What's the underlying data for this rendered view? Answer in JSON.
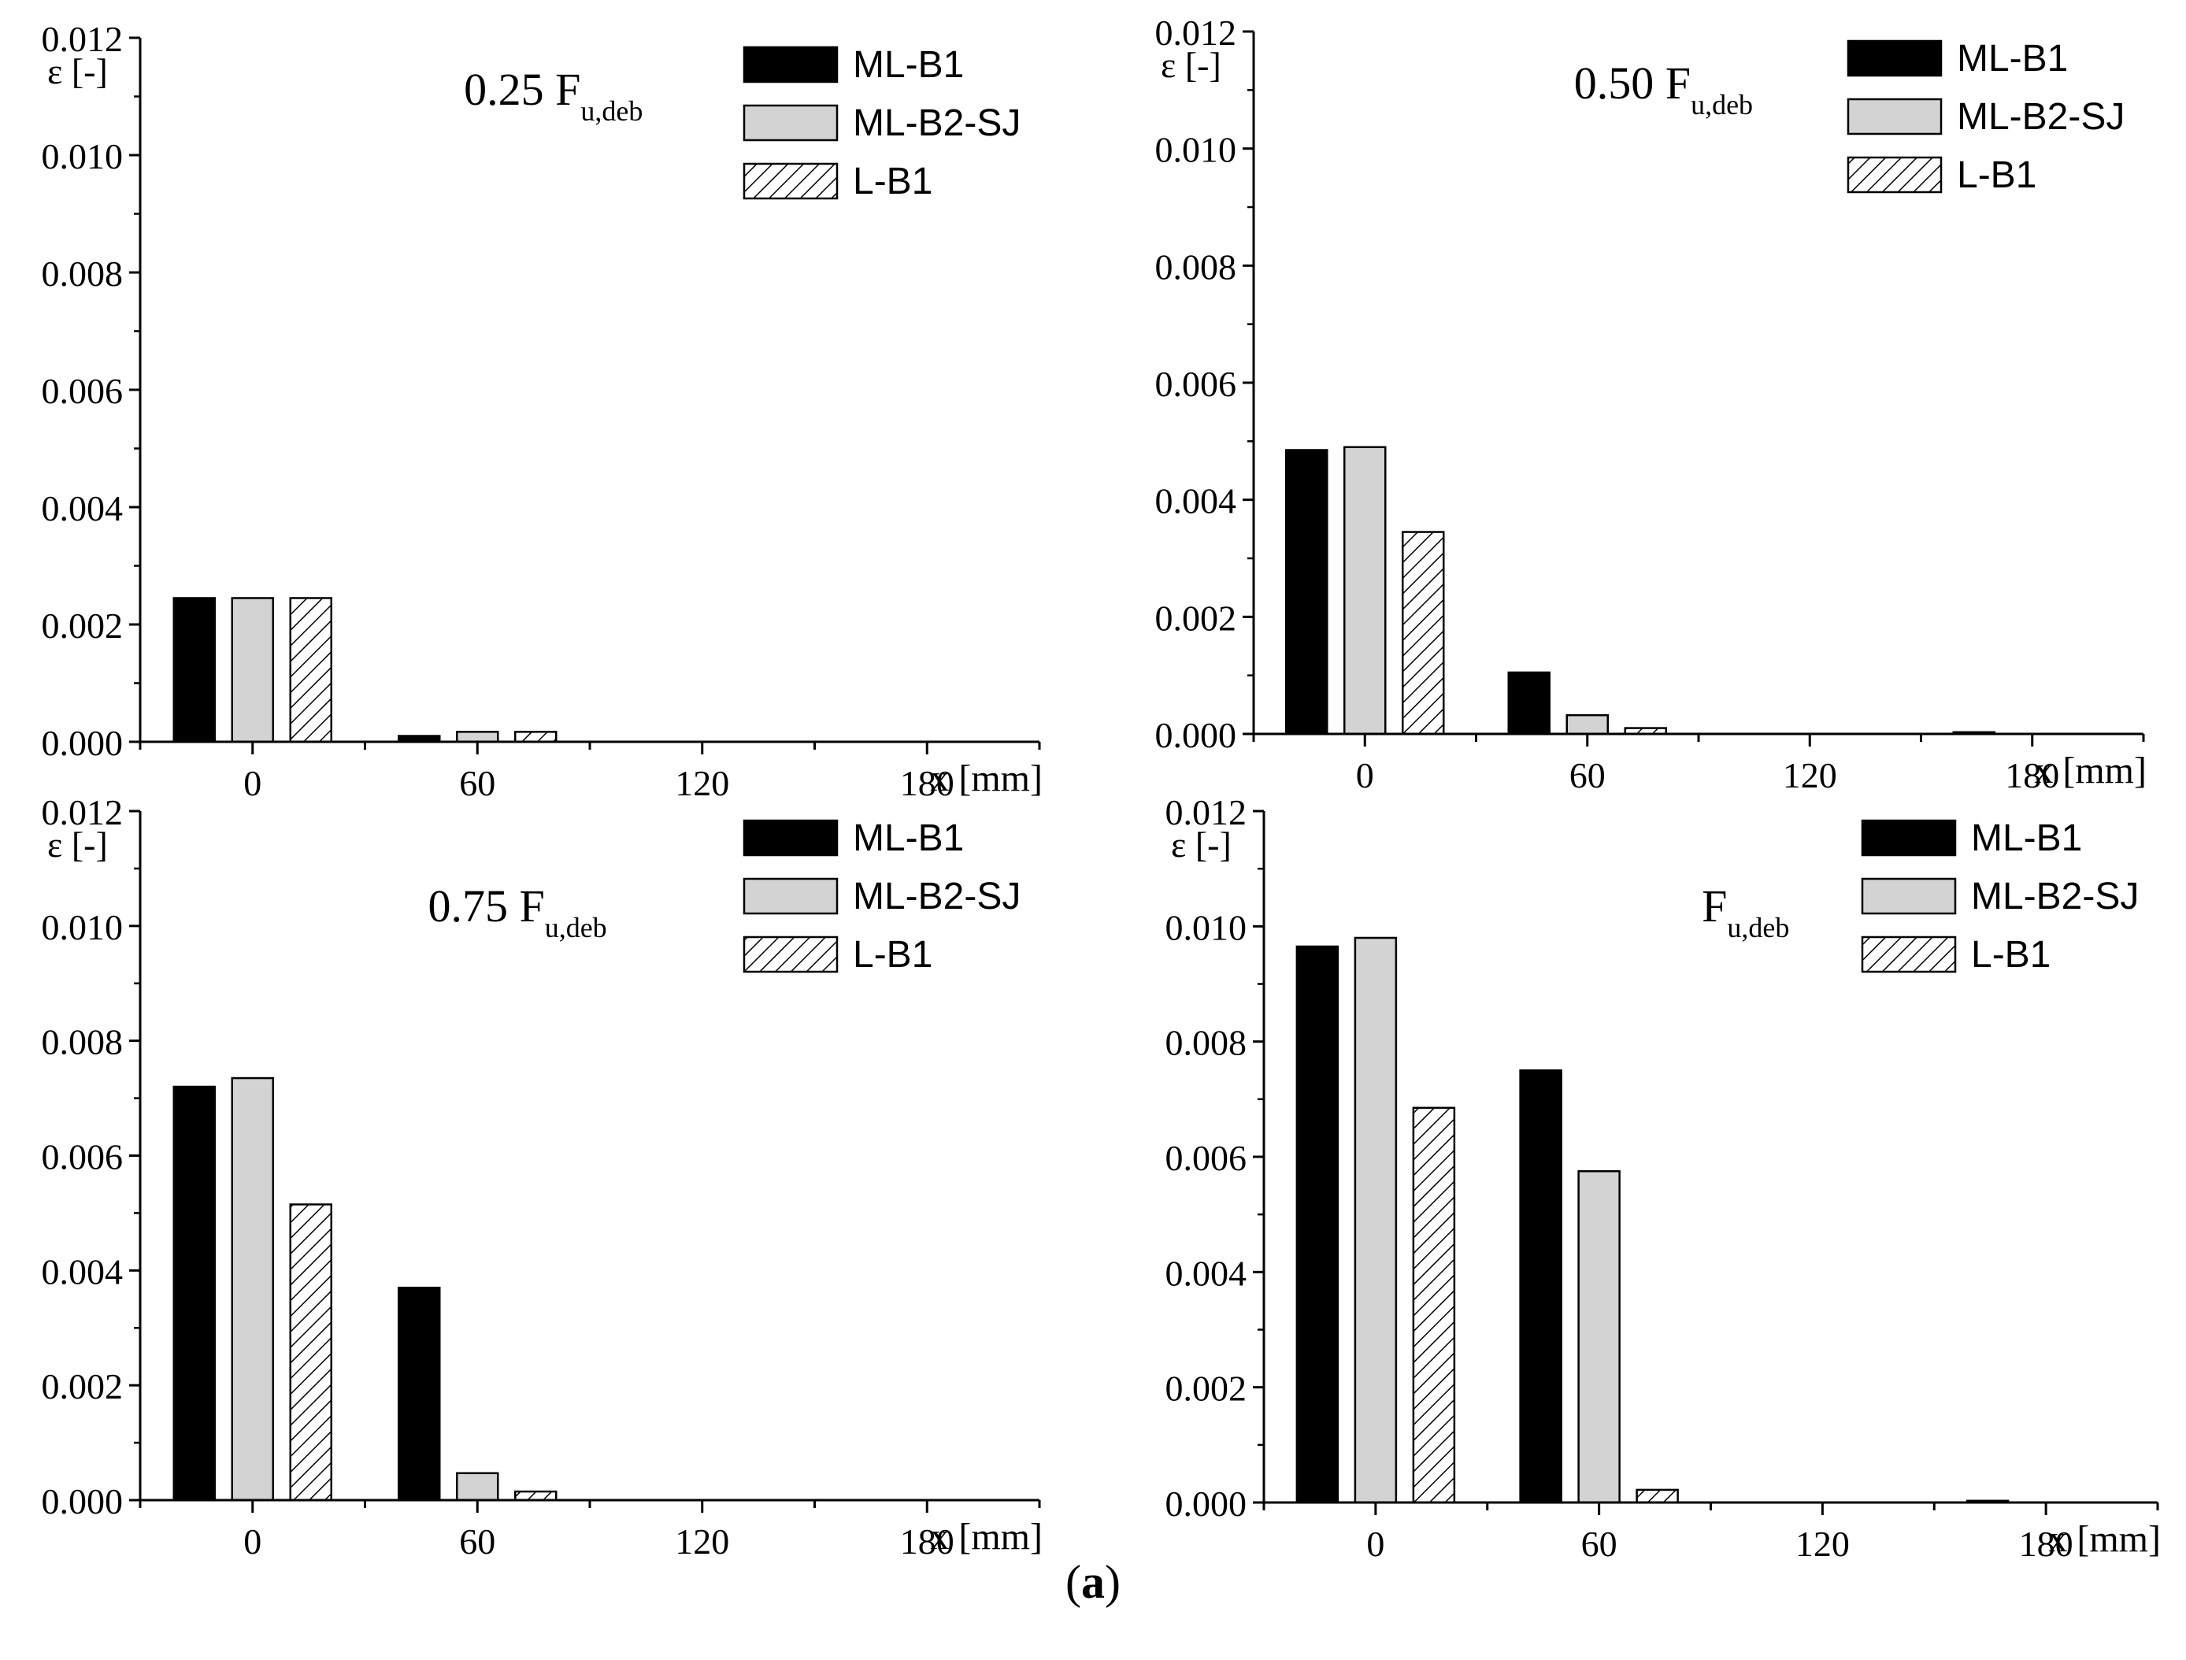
{
  "caption": {
    "open": "(",
    "letter": "a",
    "close": ")"
  },
  "colors": {
    "ML-B1": "#000000",
    "ML-B2-SJ": "#d3d3d3",
    "L-B1": "hatch"
  },
  "chart_data": [
    {
      "type": "bar",
      "title_main": "0.25 F",
      "title_sub": "u,deb",
      "ylabel": "ε [-]",
      "xlabel": "x [mm]",
      "ylim": [
        0,
        0.012
      ],
      "yticks": [
        "0.000",
        "0.002",
        "0.004",
        "0.006",
        "0.008",
        "0.010",
        "0.012"
      ],
      "xlim": [
        -30,
        210
      ],
      "xticks": [
        "0",
        "60",
        "120",
        "180"
      ],
      "legend_position": "top-right",
      "x": [
        0,
        60,
        120,
        180
      ],
      "series": [
        {
          "name": "ML-B1",
          "values": [
            0.00245,
            0.0001,
            0,
            0
          ]
        },
        {
          "name": "ML-B2-SJ",
          "values": [
            0.00245,
            0.00017,
            0,
            0
          ]
        },
        {
          "name": "L-B1",
          "values": [
            0.00245,
            0.00017,
            0,
            0
          ]
        }
      ]
    },
    {
      "type": "bar",
      "title_main": "0.50 F",
      "title_sub": "u,deb",
      "ylabel": "ε [-]",
      "xlabel": "x [mm]",
      "ylim": [
        0,
        0.012
      ],
      "yticks": [
        "0.000",
        "0.002",
        "0.004",
        "0.006",
        "0.008",
        "0.010",
        "0.012"
      ],
      "xlim": [
        -30,
        210
      ],
      "xticks": [
        "0",
        "60",
        "120",
        "180"
      ],
      "legend_position": "top-right",
      "x": [
        0,
        60,
        120,
        180
      ],
      "series": [
        {
          "name": "ML-B1",
          "values": [
            0.00485,
            0.00105,
            0,
            3e-05
          ]
        },
        {
          "name": "ML-B2-SJ",
          "values": [
            0.0049,
            0.00032,
            0,
            0
          ]
        },
        {
          "name": "L-B1",
          "values": [
            0.00345,
            0.0001,
            0,
            0
          ]
        }
      ]
    },
    {
      "type": "bar",
      "title_main": "0.75 F",
      "title_sub": "u,deb",
      "ylabel": "ε [-]",
      "xlabel": "x [mm]",
      "ylim": [
        0,
        0.012
      ],
      "yticks": [
        "0.000",
        "0.002",
        "0.004",
        "0.006",
        "0.008",
        "0.010",
        "0.012"
      ],
      "xlim": [
        -30,
        210
      ],
      "xticks": [
        "0",
        "60",
        "120",
        "180"
      ],
      "legend_position": "top-right",
      "x": [
        0,
        60,
        120,
        180
      ],
      "series": [
        {
          "name": "ML-B1",
          "values": [
            0.0072,
            0.0037,
            0,
            0
          ]
        },
        {
          "name": "ML-B2-SJ",
          "values": [
            0.00735,
            0.00047,
            0,
            0
          ]
        },
        {
          "name": "L-B1",
          "values": [
            0.00515,
            0.00015,
            0,
            0
          ]
        }
      ]
    },
    {
      "type": "bar",
      "title_main": "F",
      "title_sub": "u,deb",
      "ylabel": "ε [-]",
      "xlabel": "x [mm]",
      "ylim": [
        0,
        0.012
      ],
      "yticks": [
        "0.000",
        "0.002",
        "0.004",
        "0.006",
        "0.008",
        "0.010",
        "0.012"
      ],
      "xlim": [
        -30,
        210
      ],
      "xticks": [
        "0",
        "60",
        "120",
        "180"
      ],
      "legend_position": "top-right",
      "x": [
        0,
        60,
        120,
        180
      ],
      "series": [
        {
          "name": "ML-B1",
          "values": [
            0.00965,
            0.0075,
            0,
            3e-05
          ]
        },
        {
          "name": "ML-B2-SJ",
          "values": [
            0.0098,
            0.00575,
            0,
            0
          ]
        },
        {
          "name": "L-B1",
          "values": [
            0.00685,
            0.00022,
            0,
            0
          ]
        }
      ]
    }
  ]
}
